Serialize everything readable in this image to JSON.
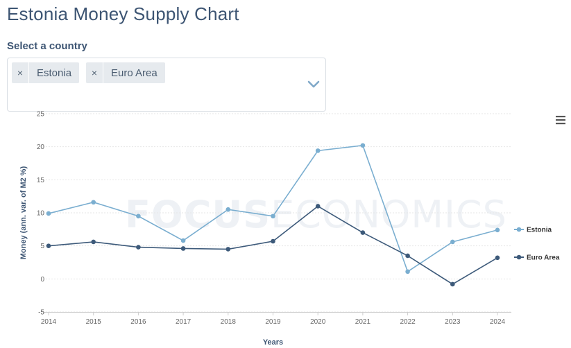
{
  "page": {
    "title": "Estonia Money Supply Chart",
    "select_label": "Select a country",
    "chips": [
      {
        "label": "Estonia",
        "remove": "×"
      },
      {
        "label": "Euro Area",
        "remove": "×"
      }
    ]
  },
  "watermark": {
    "bold": "FOCUS",
    "light": "ECONOMICS"
  },
  "colors": {
    "estonia": "#7aaed0",
    "euro_area": "#3d5a7a",
    "grid": "#e6e6e6"
  },
  "chart_data": {
    "type": "line",
    "title": "",
    "xlabel": "Years",
    "ylabel": "Money (ann. var. of M2 %)",
    "x": [
      "2014",
      "2015",
      "2016",
      "2017",
      "2018",
      "2019",
      "2020",
      "2021",
      "2022",
      "2023",
      "2024"
    ],
    "ylim": [
      -5,
      25
    ],
    "yticks": [
      "-5",
      "0",
      "5",
      "10",
      "15",
      "20",
      "25"
    ],
    "grid": true,
    "legend": "right",
    "series": [
      {
        "name": "Estonia",
        "values": [
          9.9,
          11.6,
          9.5,
          5.8,
          10.5,
          9.5,
          19.4,
          20.2,
          1.1,
          5.6,
          7.4
        ]
      },
      {
        "name": "Euro Area",
        "values": [
          5.0,
          5.6,
          4.8,
          4.6,
          4.5,
          5.7,
          11.0,
          7.0,
          3.5,
          -0.8,
          3.2
        ]
      }
    ]
  }
}
